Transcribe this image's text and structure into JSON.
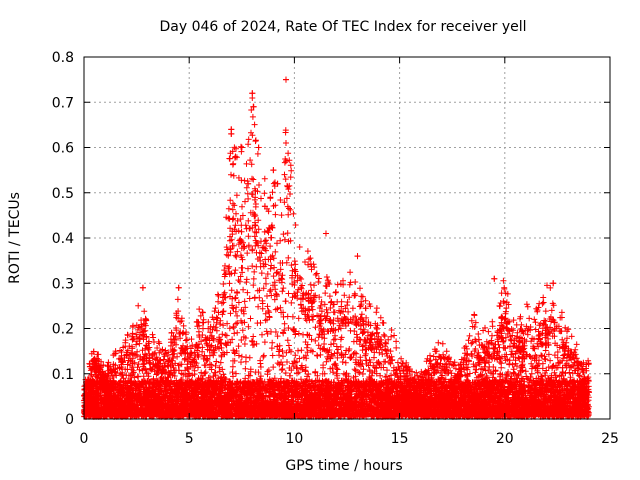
{
  "chart_data": {
    "type": "scatter",
    "title": "Day 046 of 2024, Rate Of TEC Index for receiver yell",
    "xlabel": "GPS time / hours",
    "ylabel": "ROTI / TECUs",
    "xlim": [
      0,
      25
    ],
    "ylim": [
      0,
      0.8
    ],
    "xticks": [
      0,
      5,
      10,
      15,
      20,
      25
    ],
    "yticks": [
      0,
      0.1,
      0.2,
      0.3,
      0.4,
      0.5,
      0.6,
      0.7,
      0.8
    ],
    "grid": true,
    "marker": "+",
    "color": "#ff0000",
    "x_extent_hours": [
      0,
      24
    ],
    "series": [
      {
        "name": "ROTI",
        "envelope": {
          "description": "approximate upper envelope of the dense point cloud (hour, ROTI)",
          "x": [
            0,
            0.5,
            1,
            2,
            2.8,
            3,
            4,
            4.5,
            5,
            5.5,
            6,
            6.5,
            7,
            7.5,
            8,
            8.3,
            8.5,
            9,
            9.5,
            9.6,
            10,
            10.5,
            11,
            11.5,
            12,
            12.5,
            13,
            13.5,
            14,
            14.5,
            15,
            15.5,
            16,
            16.5,
            17,
            17.5,
            18,
            18.5,
            19,
            19.5,
            20,
            20.5,
            21,
            21.5,
            22,
            22.5,
            23,
            23.5,
            24
          ],
          "y": [
            0.08,
            0.17,
            0.12,
            0.18,
            0.29,
            0.2,
            0.15,
            0.3,
            0.16,
            0.25,
            0.22,
            0.3,
            0.64,
            0.6,
            0.72,
            0.6,
            0.55,
            0.55,
            0.5,
            0.75,
            0.45,
            0.38,
            0.35,
            0.32,
            0.3,
            0.36,
            0.3,
            0.26,
            0.25,
            0.22,
            0.15,
            0.11,
            0.11,
            0.15,
            0.18,
            0.12,
            0.16,
            0.25,
            0.2,
            0.22,
            0.32,
            0.2,
            0.27,
            0.26,
            0.3,
            0.28,
            0.2,
            0.16,
            0.13
          ]
        },
        "highlights": [
          {
            "x": 9.6,
            "y": 0.75
          },
          {
            "x": 8.0,
            "y": 0.72
          },
          {
            "x": 8.05,
            "y": 0.69
          },
          {
            "x": 7.0,
            "y": 0.64
          },
          {
            "x": 7.0,
            "y": 0.63
          },
          {
            "x": 9.6,
            "y": 0.61
          },
          {
            "x": 7.5,
            "y": 0.6
          },
          {
            "x": 8.3,
            "y": 0.6
          },
          {
            "x": 7.2,
            "y": 0.58
          },
          {
            "x": 9.6,
            "y": 0.57
          },
          {
            "x": 9.0,
            "y": 0.55
          },
          {
            "x": 9.2,
            "y": 0.52
          },
          {
            "x": 7.8,
            "y": 0.52
          },
          {
            "x": 8.6,
            "y": 0.47
          },
          {
            "x": 11.5,
            "y": 0.41
          },
          {
            "x": 13.0,
            "y": 0.36
          },
          {
            "x": 2.8,
            "y": 0.29
          },
          {
            "x": 4.5,
            "y": 0.29
          },
          {
            "x": 19.5,
            "y": 0.31
          },
          {
            "x": 22.3,
            "y": 0.3
          }
        ]
      }
    ]
  }
}
